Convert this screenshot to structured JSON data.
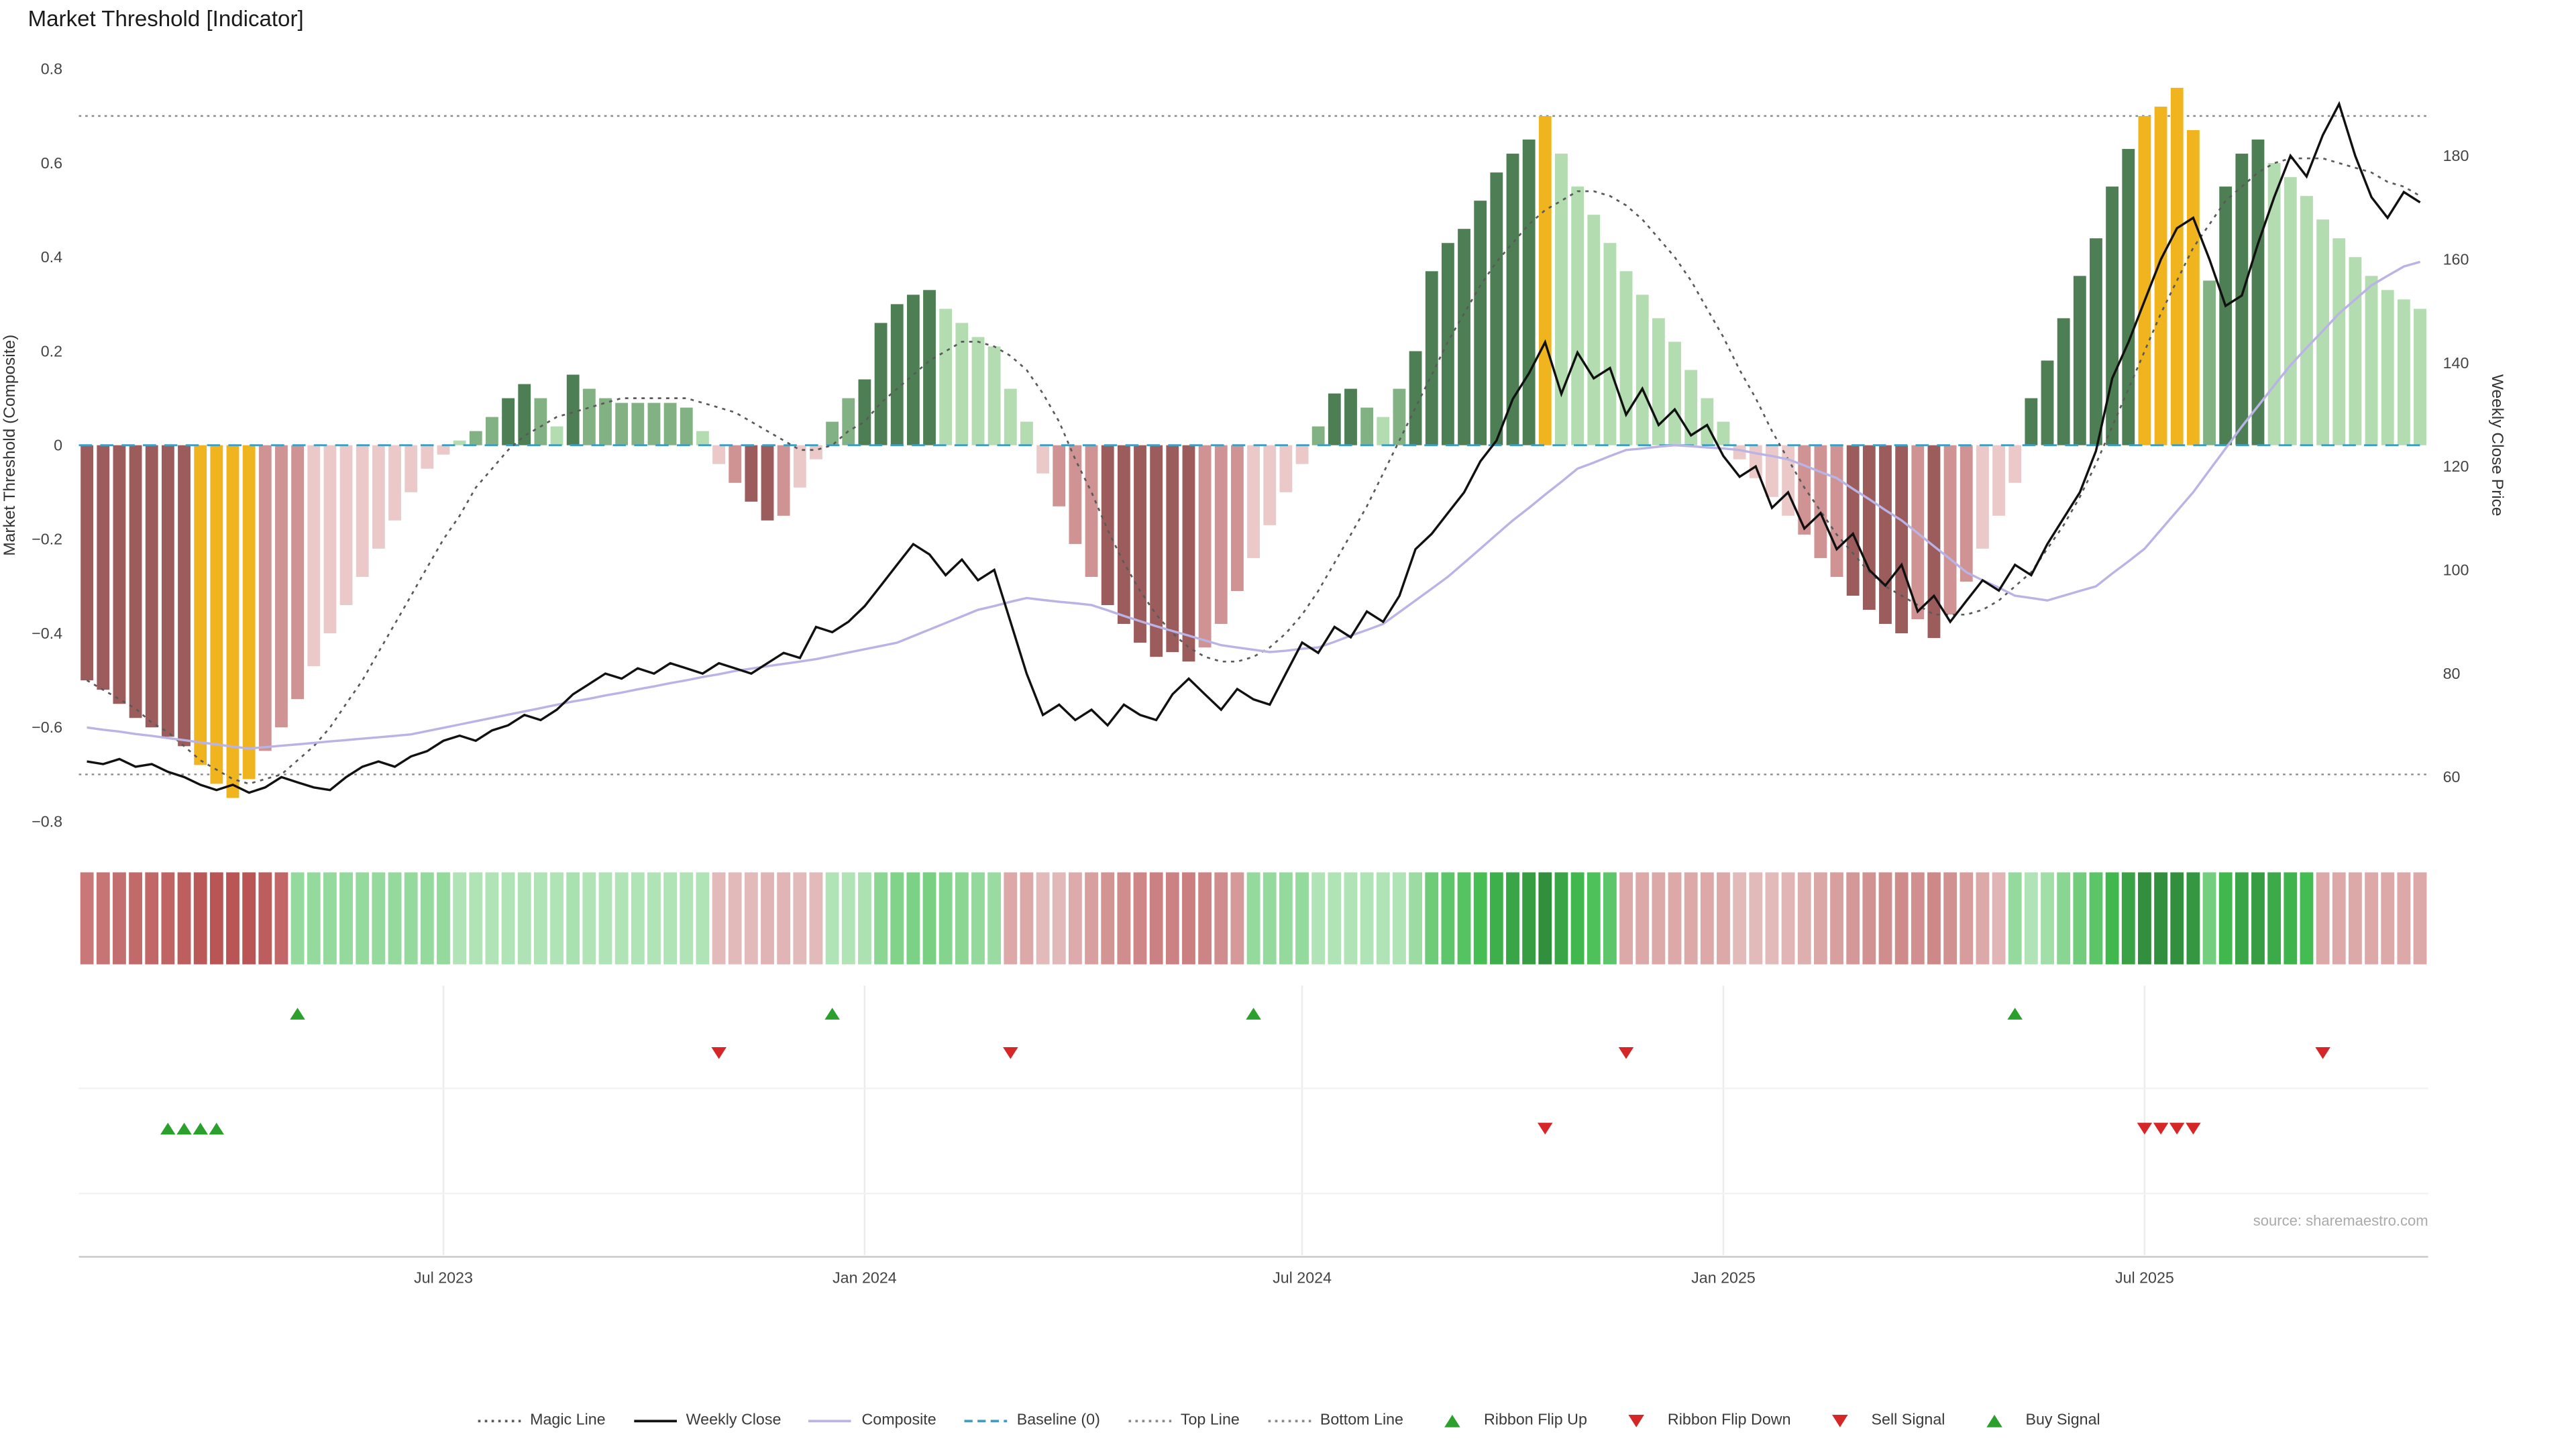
{
  "title": "Market Threshold [Indicator]",
  "source": "source: sharemaestro.com",
  "colors": {
    "bar_pos_dark": "#4e7f54",
    "bar_pos_mid": "#82b183",
    "bar_pos_light": "#b3dcb0",
    "bar_neg_dark": "#9d5c5c",
    "bar_neg_mid": "#cf9393",
    "bar_neg_light": "#ecc9c9",
    "bar_gold": "#f0b41e",
    "weekly_close": "#111111",
    "composite": "#b9b3e6",
    "magic": "#5a5a5a",
    "baseline": "#3d9dc2",
    "ref_lines": "#8a8a8a",
    "buy": "#2ca02c",
    "sell": "#d62728"
  },
  "legend": {
    "items": [
      {
        "label": "Magic Line",
        "marker": "line-dotted",
        "color": "#5a5a5a"
      },
      {
        "label": "Weekly Close",
        "marker": "line-solid",
        "color": "#111111"
      },
      {
        "label": "Composite",
        "marker": "line-solid",
        "color": "#b9b3e6"
      },
      {
        "label": "Baseline (0)",
        "marker": "line-dashed",
        "color": "#3d9dc2"
      },
      {
        "label": "Top Line",
        "marker": "line-dotted",
        "color": "#8a8a8a"
      },
      {
        "label": "Bottom Line",
        "marker": "line-dotted",
        "color": "#8a8a8a"
      },
      {
        "label": "Ribbon Flip Up",
        "marker": "triangle-up",
        "color": "#2ca02c"
      },
      {
        "label": "Ribbon Flip Down",
        "marker": "triangle-down",
        "color": "#d62728"
      },
      {
        "label": "Sell Signal",
        "marker": "triangle-down",
        "color": "#d62728"
      },
      {
        "label": "Buy Signal",
        "marker": "triangle-up",
        "color": "#2ca02c"
      }
    ]
  },
  "chart_data": {
    "type": "combo-bar-line",
    "x_unit": "week",
    "n": 145,
    "ylim_left": [
      -0.8,
      0.8
    ],
    "ylim_right": [
      55,
      195
    ],
    "axes": {
      "left_title": "Market Threshold (Composite)",
      "right_title": "Weekly Close Price",
      "left_ticks": [
        {
          "v": 0.8,
          "label": "0.8"
        },
        {
          "v": 0.6,
          "label": "0.6"
        },
        {
          "v": 0.4,
          "label": "0.4"
        },
        {
          "v": 0.2,
          "label": "0.2"
        },
        {
          "v": 0,
          "label": "0"
        },
        {
          "v": -0.2,
          "label": "−0.2"
        },
        {
          "v": -0.4,
          "label": "−0.4"
        },
        {
          "v": -0.6,
          "label": "−0.6"
        },
        {
          "v": -0.8,
          "label": "−0.8"
        }
      ],
      "right_ticks": [
        {
          "v": 180,
          "label": "180"
        },
        {
          "v": 160,
          "label": "160"
        },
        {
          "v": 140,
          "label": "140"
        },
        {
          "v": 120,
          "label": "120"
        },
        {
          "v": 100,
          "label": "100"
        },
        {
          "v": 80,
          "label": "80"
        },
        {
          "v": 60,
          "label": "60"
        }
      ],
      "x_ticks": [
        {
          "i": 22,
          "label": "Jul 2023"
        },
        {
          "i": 48,
          "label": "Jan 2024"
        },
        {
          "i": 75,
          "label": "Jul 2024"
        },
        {
          "i": 101,
          "label": "Jan 2025"
        },
        {
          "i": 127,
          "label": "Jul 2025"
        }
      ]
    },
    "reference_lines": {
      "baseline": 0,
      "top_line": 0.7,
      "bottom_line": -0.7
    },
    "series": [
      {
        "id": "threshold",
        "name": "Market Threshold Histogram",
        "type": "bar",
        "axis": "left",
        "values": [
          -0.5,
          -0.52,
          -0.55,
          -0.58,
          -0.6,
          -0.62,
          -0.64,
          -0.68,
          -0.72,
          -0.75,
          -0.71,
          -0.65,
          -0.6,
          -0.54,
          -0.47,
          -0.4,
          -0.34,
          -0.28,
          -0.22,
          -0.16,
          -0.1,
          -0.05,
          -0.02,
          0.01,
          0.03,
          0.06,
          0.1,
          0.13,
          0.1,
          0.04,
          0.15,
          0.12,
          0.1,
          0.09,
          0.09,
          0.09,
          0.09,
          0.08,
          0.03,
          -0.04,
          -0.08,
          -0.12,
          -0.16,
          -0.15,
          -0.09,
          -0.03,
          0.05,
          0.1,
          0.14,
          0.26,
          0.3,
          0.32,
          0.33,
          0.29,
          0.26,
          0.23,
          0.21,
          0.12,
          0.05,
          -0.06,
          -0.13,
          -0.21,
          -0.28,
          -0.34,
          -0.38,
          -0.42,
          -0.45,
          -0.44,
          -0.46,
          -0.43,
          -0.38,
          -0.31,
          -0.24,
          -0.17,
          -0.1,
          -0.04,
          0.04,
          0.11,
          0.12,
          0.08,
          0.06,
          0.12,
          0.2,
          0.37,
          0.43,
          0.46,
          0.52,
          0.58,
          0.62,
          0.65,
          0.7,
          0.62,
          0.55,
          0.49,
          0.43,
          0.37,
          0.32,
          0.27,
          0.22,
          0.16,
          0.1,
          0.05,
          -0.03,
          -0.07,
          -0.11,
          -0.15,
          -0.19,
          -0.24,
          -0.28,
          -0.32,
          -0.35,
          -0.38,
          -0.4,
          -0.37,
          -0.41,
          -0.36,
          -0.29,
          -0.22,
          -0.15,
          -0.08,
          0.1,
          0.18,
          0.27,
          0.36,
          0.44,
          0.55,
          0.63,
          0.7,
          0.72,
          0.76,
          0.67,
          0.35,
          0.55,
          0.62,
          0.65,
          0.6,
          0.57,
          0.53,
          0.48,
          0.44,
          0.4,
          0.36,
          0.33,
          0.31,
          0.29
        ],
        "shade_runs": [
          [
            7,
            "d"
          ],
          [
            4,
            "g"
          ],
          [
            3,
            "m"
          ],
          [
            10,
            "l"
          ],
          [
            2,
            "m"
          ],
          [
            2,
            "d"
          ],
          [
            1,
            "m"
          ],
          [
            1,
            "l"
          ],
          [
            1,
            "d"
          ],
          [
            7,
            "m"
          ],
          [
            2,
            "l"
          ],
          [
            1,
            "m"
          ],
          [
            2,
            "d"
          ],
          [
            1,
            "m"
          ],
          [
            2,
            "l"
          ],
          [
            2,
            "m"
          ],
          [
            5,
            "d"
          ],
          [
            7,
            "l"
          ],
          [
            3,
            "m"
          ],
          [
            6,
            "d"
          ],
          [
            3,
            "m"
          ],
          [
            4,
            "l"
          ],
          [
            1,
            "m"
          ],
          [
            2,
            "d"
          ],
          [
            1,
            "m"
          ],
          [
            1,
            "l"
          ],
          [
            1,
            "m"
          ],
          [
            8,
            "d"
          ],
          [
            1,
            "g"
          ],
          [
            15,
            "l"
          ],
          [
            3,
            "m"
          ],
          [
            4,
            "d"
          ],
          [
            1,
            "m"
          ],
          [
            1,
            "d"
          ],
          [
            2,
            "m"
          ],
          [
            3,
            "l"
          ],
          [
            7,
            "d"
          ],
          [
            4,
            "g"
          ],
          [
            1,
            "m"
          ],
          [
            3,
            "d"
          ],
          [
            10,
            "l"
          ]
        ]
      },
      {
        "id": "weekly_close",
        "name": "Weekly Close",
        "type": "line",
        "axis": "right",
        "values": [
          63,
          62.5,
          63.5,
          62,
          62.5,
          61,
          60,
          58.5,
          57.5,
          58.5,
          57,
          58,
          60,
          59,
          58,
          57.5,
          60,
          62,
          63,
          62,
          64,
          65,
          67,
          68,
          67,
          69,
          70,
          72,
          71,
          73,
          76,
          78,
          80,
          79,
          81,
          80,
          82,
          81,
          80,
          82,
          81,
          80,
          82,
          84,
          83,
          89,
          88,
          90,
          93,
          97,
          101,
          105,
          103,
          99,
          102,
          98,
          100,
          90,
          80,
          72,
          74,
          71,
          73,
          70,
          74,
          72,
          71,
          76,
          79,
          76,
          73,
          77,
          75,
          74,
          80,
          86,
          84,
          89,
          87,
          92,
          90,
          95,
          104,
          107,
          111,
          115,
          121,
          125,
          133,
          138,
          144,
          134,
          142,
          137,
          139,
          130,
          135,
          128,
          131,
          126,
          128,
          122,
          118,
          120,
          112,
          115,
          108,
          111,
          104,
          107,
          100,
          97,
          101,
          92,
          95,
          90,
          94,
          98,
          96,
          101,
          99,
          105,
          110,
          115,
          123,
          137,
          144,
          152,
          160,
          166,
          168,
          160,
          151,
          153,
          163,
          172,
          180,
          176,
          184,
          190,
          180,
          172,
          168,
          173,
          171
        ]
      },
      {
        "id": "composite",
        "name": "Composite",
        "type": "line",
        "axis": "left",
        "values": [
          -0.6,
          -0.605,
          -0.609,
          -0.614,
          -0.618,
          -0.623,
          -0.627,
          -0.632,
          -0.636,
          -0.641,
          -0.645,
          -0.642,
          -0.639,
          -0.636,
          -0.633,
          -0.63,
          -0.627,
          -0.624,
          -0.621,
          -0.618,
          -0.615,
          -0.608,
          -0.601,
          -0.594,
          -0.587,
          -0.58,
          -0.573,
          -0.566,
          -0.559,
          -0.552,
          -0.545,
          -0.539,
          -0.532,
          -0.526,
          -0.519,
          -0.513,
          -0.506,
          -0.5,
          -0.493,
          -0.487,
          -0.48,
          -0.475,
          -0.47,
          -0.465,
          -0.46,
          -0.455,
          -0.448,
          -0.441,
          -0.434,
          -0.427,
          -0.42,
          -0.406,
          -0.392,
          -0.378,
          -0.364,
          -0.35,
          -0.342,
          -0.333,
          -0.325,
          -0.329,
          -0.333,
          -0.336,
          -0.34,
          -0.351,
          -0.363,
          -0.374,
          -0.385,
          -0.395,
          -0.405,
          -0.415,
          -0.425,
          -0.43,
          -0.435,
          -0.44,
          -0.437,
          -0.433,
          -0.43,
          -0.418,
          -0.405,
          -0.393,
          -0.38,
          -0.355,
          -0.33,
          -0.305,
          -0.28,
          -0.25,
          -0.22,
          -0.19,
          -0.16,
          -0.133,
          -0.105,
          -0.078,
          -0.05,
          -0.037,
          -0.023,
          -0.01,
          -0.007,
          -0.003,
          0,
          -0.002,
          -0.005,
          -0.007,
          -0.01,
          -0.017,
          -0.023,
          -0.03,
          -0.043,
          -0.057,
          -0.07,
          -0.093,
          -0.115,
          -0.138,
          -0.16,
          -0.187,
          -0.215,
          -0.242,
          -0.27,
          -0.287,
          -0.303,
          -0.32,
          -0.325,
          -0.33,
          -0.32,
          -0.31,
          -0.3,
          -0.273,
          -0.247,
          -0.22,
          -0.18,
          -0.14,
          -0.1,
          -0.053,
          -0.007,
          0.04,
          0.083,
          0.127,
          0.17,
          0.207,
          0.243,
          0.28,
          0.31,
          0.34,
          0.36,
          0.38,
          0.39
        ]
      },
      {
        "id": "magic",
        "name": "Magic Line",
        "type": "line",
        "style": "dotted",
        "axis": "left",
        "values": [
          -0.5,
          -0.52,
          -0.54,
          -0.56,
          -0.59,
          -0.61,
          -0.64,
          -0.67,
          -0.69,
          -0.71,
          -0.72,
          -0.71,
          -0.7,
          -0.67,
          -0.64,
          -0.6,
          -0.55,
          -0.5,
          -0.44,
          -0.38,
          -0.32,
          -0.26,
          -0.2,
          -0.15,
          -0.09,
          -0.05,
          -0.01,
          0.02,
          0.04,
          0.06,
          0.07,
          0.08,
          0.09,
          0.1,
          0.1,
          0.1,
          0.1,
          0.1,
          0.09,
          0.08,
          0.07,
          0.05,
          0.03,
          0.01,
          -0.01,
          -0.01,
          0,
          0.03,
          0.05,
          0.09,
          0.12,
          0.15,
          0.18,
          0.2,
          0.22,
          0.22,
          0.21,
          0.19,
          0.16,
          0.11,
          0.05,
          -0.03,
          -0.1,
          -0.18,
          -0.25,
          -0.31,
          -0.36,
          -0.4,
          -0.43,
          -0.45,
          -0.46,
          -0.46,
          -0.45,
          -0.43,
          -0.4,
          -0.36,
          -0.31,
          -0.25,
          -0.19,
          -0.13,
          -0.06,
          0.01,
          0.08,
          0.15,
          0.22,
          0.28,
          0.34,
          0.39,
          0.43,
          0.47,
          0.5,
          0.52,
          0.54,
          0.54,
          0.53,
          0.51,
          0.48,
          0.44,
          0.4,
          0.35,
          0.29,
          0.23,
          0.16,
          0.1,
          0.03,
          -0.03,
          -0.09,
          -0.14,
          -0.19,
          -0.23,
          -0.27,
          -0.3,
          -0.32,
          -0.34,
          -0.36,
          -0.36,
          -0.36,
          -0.35,
          -0.33,
          -0.3,
          -0.27,
          -0.22,
          -0.17,
          -0.11,
          -0.04,
          0.04,
          0.12,
          0.2,
          0.28,
          0.35,
          0.42,
          0.47,
          0.52,
          0.55,
          0.58,
          0.6,
          0.61,
          0.61,
          0.61,
          0.6,
          0.59,
          0.58,
          0.56,
          0.55,
          0.53
        ]
      }
    ],
    "ribbon_segments": [
      {
        "dir": "down",
        "from": 0,
        "to": 12
      },
      {
        "dir": "up",
        "from": 13,
        "to": 38
      },
      {
        "dir": "down",
        "from": 39,
        "to": 45
      },
      {
        "dir": "up",
        "from": 46,
        "to": 56
      },
      {
        "dir": "down",
        "from": 57,
        "to": 71
      },
      {
        "dir": "up",
        "from": 72,
        "to": 94
      },
      {
        "dir": "down",
        "from": 95,
        "to": 118
      },
      {
        "dir": "up",
        "from": 119,
        "to": 137
      },
      {
        "dir": "down",
        "from": 138,
        "to": 144
      }
    ],
    "signals": {
      "ribbon_flip_up": [
        13,
        46,
        72,
        119
      ],
      "ribbon_flip_down": [
        39,
        57,
        95,
        138
      ],
      "buy": [
        5,
        6,
        7,
        8
      ],
      "sell": [
        90,
        127,
        128,
        129,
        130
      ]
    }
  }
}
